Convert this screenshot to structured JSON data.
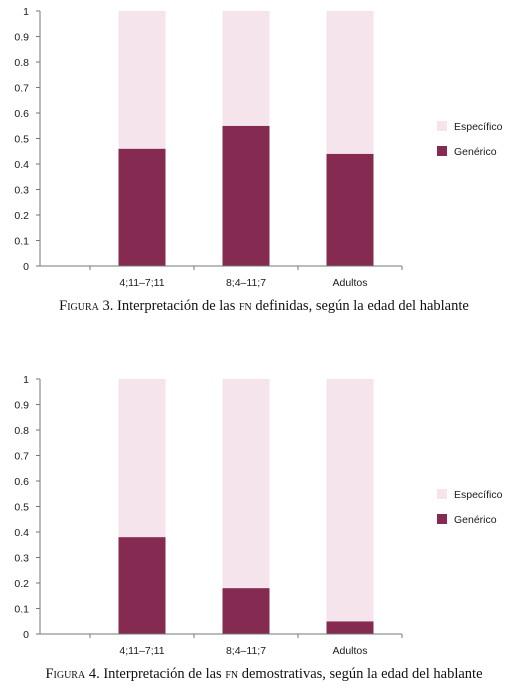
{
  "chart_data": [
    {
      "type": "bar",
      "stacked": true,
      "categories": [
        "4;11–7;11",
        "8;4–11;7",
        "Adultos"
      ],
      "series": [
        {
          "name": "Específico",
          "values": [
            0.54,
            0.45,
            0.56
          ],
          "color": "#f5e4ec"
        },
        {
          "name": "Genérico",
          "values": [
            0.46,
            0.55,
            0.44
          ],
          "color": "#852a50"
        }
      ],
      "ylim": [
        0,
        1
      ],
      "yticks": [
        "0",
        "0.1",
        "0.2",
        "0.3",
        "0.4",
        "0.5",
        "0.6",
        "0.7",
        "0.8",
        "0.9",
        "1"
      ],
      "legend_position": "right",
      "grid": false,
      "caption": {
        "prefix": "Figura",
        "number": "3.",
        "before_abbr": "Interpretación de las",
        "abbr": "fn",
        "after_abbr": "definidas, según la edad del hablante"
      }
    },
    {
      "type": "bar",
      "stacked": true,
      "categories": [
        "4;11–7;11",
        "8;4–11;7",
        "Adultos"
      ],
      "series": [
        {
          "name": "Específico",
          "values": [
            0.62,
            0.82,
            0.95
          ],
          "color": "#f5e4ec"
        },
        {
          "name": "Genérico",
          "values": [
            0.38,
            0.18,
            0.05
          ],
          "color": "#852a50"
        }
      ],
      "ylim": [
        0,
        1
      ],
      "yticks": [
        "0",
        "0.1",
        "0.2",
        "0.3",
        "0.4",
        "0.5",
        "0.6",
        "0.7",
        "0.8",
        "0.9",
        "1"
      ],
      "legend_position": "right",
      "grid": false,
      "caption": {
        "prefix": "Figura",
        "number": "4.",
        "before_abbr": "Interpretación de las",
        "abbr": "fn",
        "after_abbr": "demostrativas, según la edad del hablante"
      }
    }
  ]
}
